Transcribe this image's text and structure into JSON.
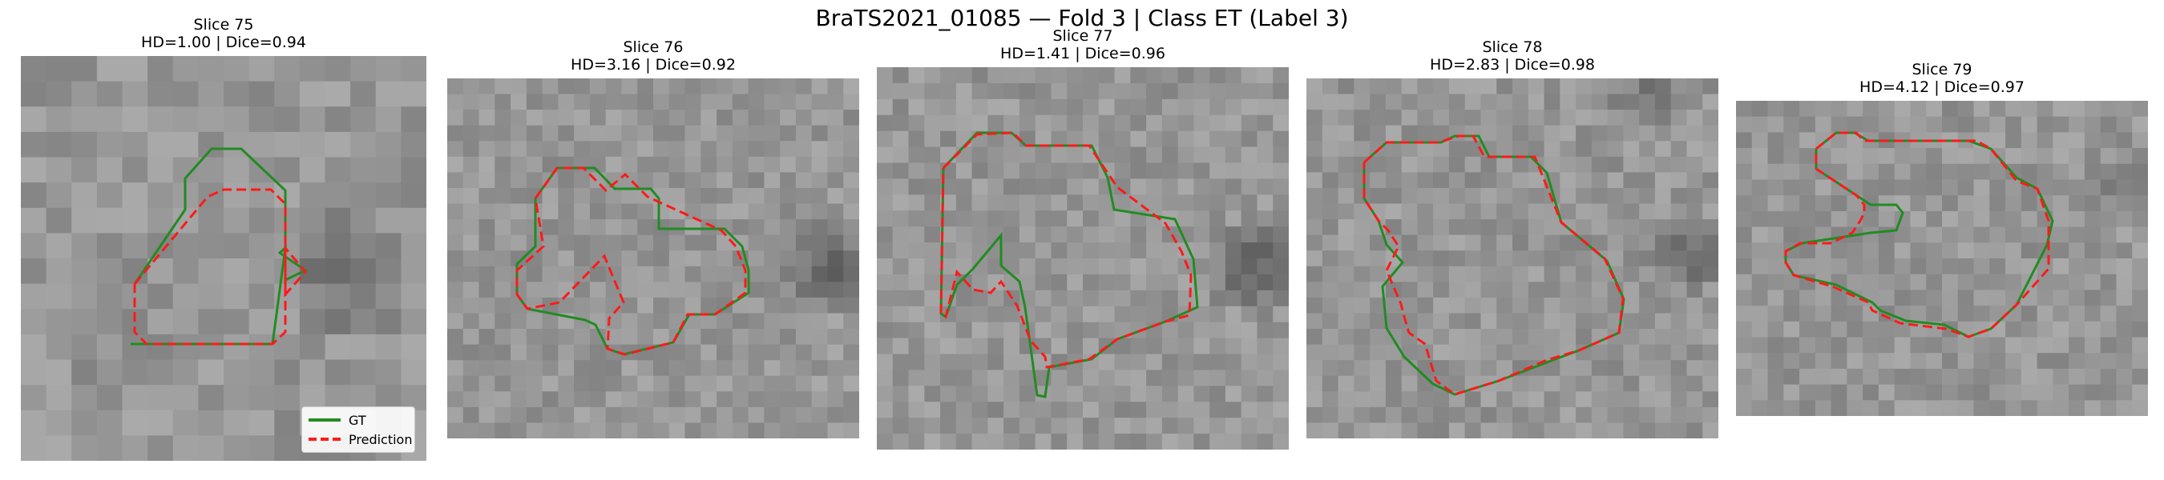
{
  "figure": {
    "title": "BraTS2021_01085 — Fold 3 | Class ET (Label 3)"
  },
  "colors": {
    "gt": "#228b22",
    "prediction": "#ff1a1a"
  },
  "legend": {
    "gt_label": "GT",
    "prediction_label": "Prediction"
  },
  "panels": [
    {
      "title": "Slice 75",
      "metrics": "HD=1.00 | Dice=0.94"
    },
    {
      "title": "Slice 76",
      "metrics": "HD=3.16 | Dice=0.92"
    },
    {
      "title": "Slice 77",
      "metrics": "HD=1.41 | Dice=0.96"
    },
    {
      "title": "Slice 78",
      "metrics": "HD=2.83 | Dice=0.98"
    },
    {
      "title": "Slice 79",
      "metrics": "HD=4.12 | Dice=0.97"
    }
  ]
}
